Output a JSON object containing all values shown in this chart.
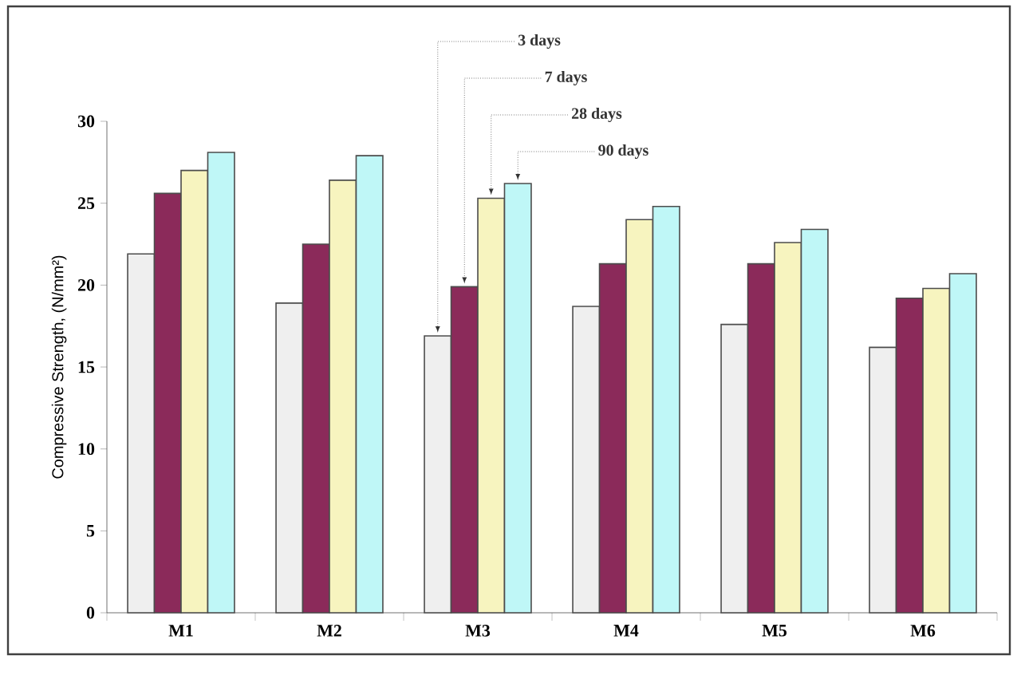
{
  "chart_data": {
    "type": "bar",
    "ylabel": "Compressive Strength, (N/mm²)",
    "categories": [
      "M1",
      "M2",
      "M3",
      "M4",
      "M5",
      "M6"
    ],
    "series": [
      {
        "name": "3 days",
        "color": "#efefef",
        "values": [
          21.9,
          18.9,
          16.9,
          18.7,
          17.6,
          16.2
        ]
      },
      {
        "name": "7 days",
        "color": "#8b2a5a",
        "values": [
          25.6,
          22.5,
          19.9,
          21.3,
          21.3,
          19.2
        ]
      },
      {
        "name": "28 days",
        "color": "#f7f4bf",
        "values": [
          27.0,
          26.4,
          25.3,
          24.0,
          22.6,
          19.8
        ]
      },
      {
        "name": "90 days",
        "color": "#bff7f7",
        "values": [
          28.1,
          27.9,
          26.2,
          24.8,
          23.4,
          20.7
        ]
      }
    ],
    "ylim": [
      0,
      30
    ],
    "yticks": [
      0,
      5,
      10,
      15,
      20,
      25,
      30
    ],
    "grid": false
  }
}
